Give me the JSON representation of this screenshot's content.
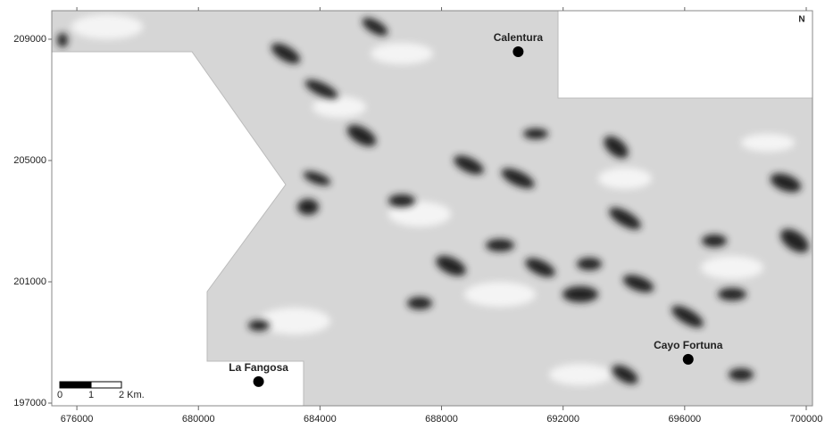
{
  "map": {
    "xlim": [
      675175,
      700206
    ],
    "ylim": [
      196912,
      209940
    ],
    "xticks": [
      676000,
      680000,
      684000,
      688000,
      692000,
      696000,
      700000
    ],
    "yticks": [
      197000,
      201000,
      205000,
      209000
    ],
    "places": [
      {
        "name": "Calentura",
        "x": 690522,
        "y": 208588
      },
      {
        "name": "La Fangosa",
        "x": 681979,
        "y": 197710
      },
      {
        "name": "Cayo Fortuna",
        "x": 696115,
        "y": 198445
      }
    ],
    "scale_bar": {
      "labels": [
        "0",
        "1",
        "2 Km."
      ]
    },
    "north": "N"
  }
}
